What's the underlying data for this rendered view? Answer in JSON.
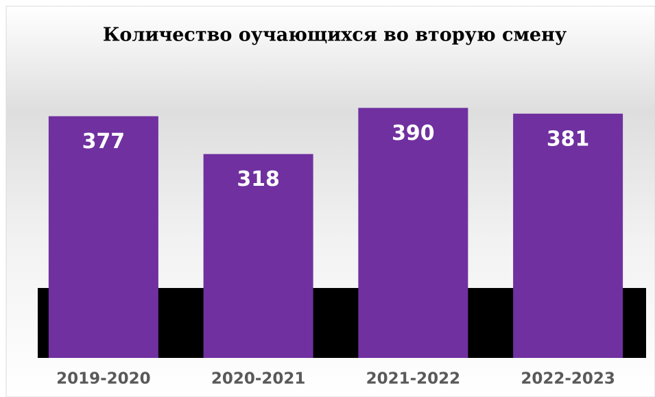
{
  "chart_data": {
    "type": "bar",
    "title": "Количество оучающихся во вторую смену",
    "categories": [
      "2019-2020",
      "2020-2021",
      "2021-2022",
      "2022-2023"
    ],
    "values": [
      377,
      318,
      390,
      381
    ],
    "color": "#7030a0",
    "ylim": [
      0,
      400
    ]
  }
}
